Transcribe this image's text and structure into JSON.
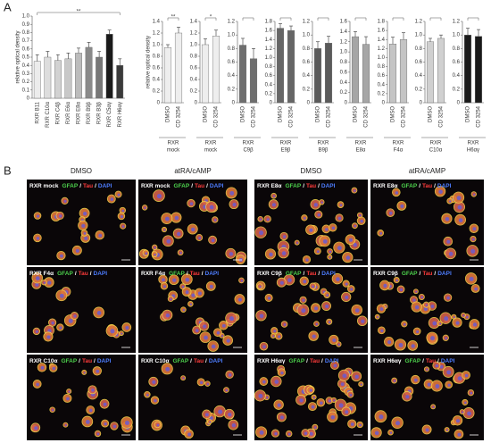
{
  "panel_labels": [
    "A",
    "B"
  ],
  "chart_data": [
    {
      "type": "bar",
      "y_label": "relative optical density",
      "categories": [
        "RXR B11",
        "RXR C10α",
        "RXR C4β",
        "RXR E6α",
        "RXR E8α",
        "RXR B9β",
        "RXR B3β",
        "RXR C5αγ",
        "RXR H6αγ"
      ],
      "values": [
        0.45,
        0.5,
        0.46,
        0.48,
        0.55,
        0.62,
        0.5,
        0.78,
        0.4
      ],
      "errors": [
        0.08,
        0.07,
        0.07,
        0.07,
        0.06,
        0.06,
        0.07,
        0.05,
        0.08
      ],
      "colors": [
        "#ececec",
        "#dddddd",
        "#d2d2d2",
        "#c8c8c8",
        "#bcbcbc",
        "#8a8a8a",
        "#777777",
        "#1a1a1a",
        "#3a3a3a"
      ],
      "ylim": [
        0,
        1
      ],
      "yticks": [
        0,
        0.1,
        0.2,
        0.3,
        0.4,
        0.5,
        0.6,
        0.7,
        0.8,
        0.9,
        {
          "value": 1,
          "label": "1.0"
        }
      ],
      "annotation": "**"
    },
    {
      "type": "bar",
      "y_label": "relative optical density",
      "categories": [
        "DMSO",
        "CD 3254"
      ],
      "group_lines": [
        "RXR",
        "mock"
      ],
      "values": [
        0.95,
        1.2
      ],
      "errors": [
        0.05,
        0.1
      ],
      "color": "#eeeeee",
      "ylim": [
        0,
        1.4
      ],
      "yticks": [
        0,
        0.2,
        0.4,
        0.6,
        0.8,
        {
          "value": 1,
          "label": "1.0"
        },
        1.2,
        1.4
      ],
      "annotation": "**"
    },
    {
      "type": "bar",
      "categories": [
        "DMSO",
        "CD 3254"
      ],
      "group_lines": [
        "RXR",
        "mock"
      ],
      "values": [
        1.0,
        1.15
      ],
      "errors": [
        0.1,
        0.1
      ],
      "color": "#eeeeee",
      "ylim": [
        0,
        1.4
      ],
      "yticks": [
        0,
        0.2,
        0.4,
        0.6,
        0.8,
        {
          "value": 1,
          "label": "1.0"
        },
        1.2,
        1.4
      ],
      "annotation": "*"
    },
    {
      "type": "bar",
      "categories": [
        "DMSO",
        "CD 3254"
      ],
      "group_lines": [
        "RXR",
        "C9β"
      ],
      "values": [
        0.85,
        0.65
      ],
      "errors": [
        0.1,
        0.15
      ],
      "color": "#6e6e6e",
      "ylim": [
        0,
        1.2
      ],
      "yticks": [
        0,
        0.2,
        0.4,
        0.6,
        0.8,
        {
          "value": 1,
          "label": "1.0"
        },
        1.2
      ]
    },
    {
      "type": "bar",
      "categories": [
        "DMSO",
        "CD 3254"
      ],
      "group_lines": [
        "RXR",
        "E9β"
      ],
      "values": [
        1.65,
        1.6
      ],
      "errors": [
        0.1,
        0.1
      ],
      "color": "#666666",
      "ylim": [
        0,
        1.8
      ],
      "yticks": [
        0,
        0.2,
        0.4,
        0.6,
        0.8,
        {
          "value": 1,
          "label": "1.0"
        },
        1.2,
        1.4,
        1.6,
        1.8
      ]
    },
    {
      "type": "bar",
      "categories": [
        "DMSO",
        "CD 3254"
      ],
      "group_lines": [
        "RXR",
        "B9β"
      ],
      "values": [
        0.8,
        0.88
      ],
      "errors": [
        0.1,
        0.1
      ],
      "color": "#5a5a5a",
      "ylim": [
        0,
        1.2
      ],
      "yticks": [
        0,
        0.2,
        0.4,
        0.6,
        0.8,
        {
          "value": 1,
          "label": "1.0"
        },
        1.2
      ]
    },
    {
      "type": "bar",
      "categories": [
        "DMSO",
        "CD 3254"
      ],
      "group_lines": [
        "RXR",
        "E8α"
      ],
      "values": [
        1.3,
        1.15
      ],
      "errors": [
        0.1,
        0.15
      ],
      "color": "#a6a6a6",
      "ylim": [
        0,
        1.6
      ],
      "yticks": [
        0,
        0.2,
        0.4,
        0.6,
        0.8,
        {
          "value": 1,
          "label": "1.0"
        },
        1.2,
        1.4,
        1.6
      ]
    },
    {
      "type": "bar",
      "categories": [
        "DMSO",
        "CD 3254"
      ],
      "group_lines": [
        "RXR",
        "F4α"
      ],
      "values": [
        1.3,
        1.4
      ],
      "errors": [
        0.15,
        0.15
      ],
      "color": "#c4c4c4",
      "ylim": [
        0,
        1.8
      ],
      "yticks": [
        0,
        0.2,
        0.4,
        0.6,
        0.8,
        {
          "value": 1,
          "label": "1.0"
        },
        1.2,
        1.4,
        1.6,
        1.8
      ]
    },
    {
      "type": "bar",
      "categories": [
        "DMSO",
        "CD 3254"
      ],
      "group_lines": [
        "RXR",
        "C10α"
      ],
      "values": [
        0.9,
        0.95
      ],
      "errors": [
        0.05,
        0.05
      ],
      "color": "#d0d0d0",
      "ylim": [
        0,
        1.2
      ],
      "yticks": [
        0,
        0.2,
        0.4,
        0.6,
        0.8,
        {
          "value": 1,
          "label": "1.0"
        },
        1.2
      ]
    },
    {
      "type": "bar",
      "categories": [
        "DMSO",
        "CD 3254"
      ],
      "group_lines": [
        "RXR",
        "H6αγ"
      ],
      "values": [
        1.0,
        0.98
      ],
      "errors": [
        0.1,
        0.1
      ],
      "color": "#1a1a1a",
      "ylim": [
        0,
        1.2
      ],
      "yticks": [
        0,
        0.2,
        0.4,
        0.6,
        0.8,
        {
          "value": 1,
          "label": "1.0"
        },
        1.2
      ]
    }
  ],
  "panel_b": {
    "column_headers": [
      "DMSO",
      "atRA/cAMP",
      "DMSO",
      "atRA/cAMP"
    ],
    "stains": [
      "GFAP",
      "Tau",
      "DAPI"
    ],
    "separator": "/",
    "images": [
      [
        "RXR mock",
        "RXR mock",
        "RXR  E8α",
        "RXR  E8α"
      ],
      [
        "RXR F4α",
        "RXR F4α",
        "RXR  C9β",
        "RXR  C9β"
      ],
      [
        "RXR C10α",
        "RXR C10α",
        "RXR H6αγ",
        "RXR H6αγ"
      ]
    ]
  }
}
